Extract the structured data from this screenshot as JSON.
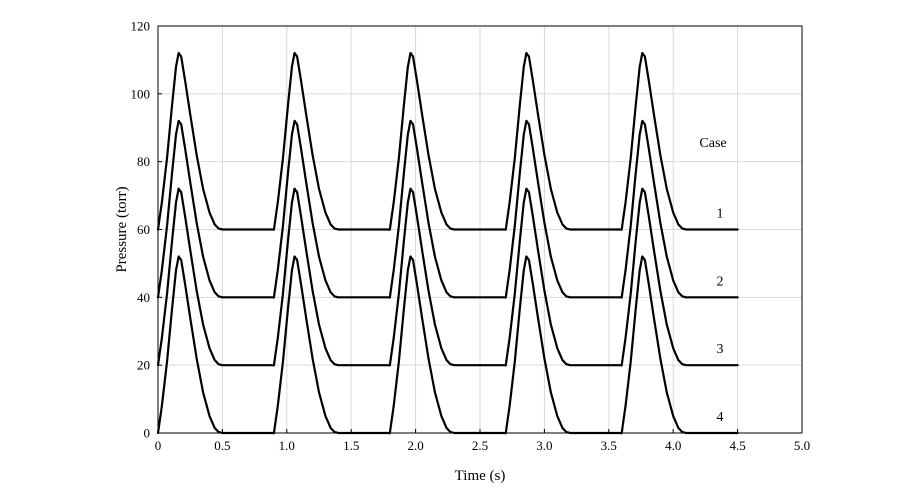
{
  "chart_data": {
    "type": "line",
    "title": "",
    "xlabel": "Time (s)",
    "ylabel": "Pressure (torr)",
    "xlim": [
      0,
      5.0
    ],
    "ylim": [
      0,
      120
    ],
    "x_ticks": [
      0,
      0.5,
      1.0,
      1.5,
      2.0,
      2.5,
      3.0,
      3.5,
      4.0,
      4.5,
      5.0
    ],
    "x_tick_labels": [
      "0",
      "0.5",
      "1.0",
      "1.5",
      "2.0",
      "2.5",
      "3.0",
      "3.5",
      "4.0",
      "4.5",
      "5.0"
    ],
    "y_ticks": [
      0,
      20,
      40,
      60,
      80,
      100,
      120
    ],
    "y_tick_labels": [
      "0",
      "20",
      "40",
      "60",
      "80",
      "100",
      "120"
    ],
    "grid": true,
    "legend_title": "Case",
    "period_s": 0.9,
    "x_end": 4.5,
    "pulse_profile": {
      "t": [
        0,
        0.03,
        0.07,
        0.11,
        0.14,
        0.16,
        0.18,
        0.21,
        0.25,
        0.3,
        0.35,
        0.4,
        0.44,
        0.47,
        0.5,
        0.9
      ],
      "dp": [
        0,
        8,
        21,
        37,
        48,
        52,
        51,
        44,
        34,
        22,
        12,
        5,
        1.5,
        0.3,
        0,
        0
      ]
    },
    "series": [
      {
        "label": "1",
        "baseline": 60,
        "peak": 112,
        "color": "#000000"
      },
      {
        "label": "2",
        "baseline": 40,
        "peak": 92,
        "color": "#000000"
      },
      {
        "label": "3",
        "baseline": 20,
        "peak": 72,
        "color": "#000000"
      },
      {
        "label": "4",
        "baseline": 0,
        "peak": 52,
        "color": "#000000"
      }
    ]
  }
}
